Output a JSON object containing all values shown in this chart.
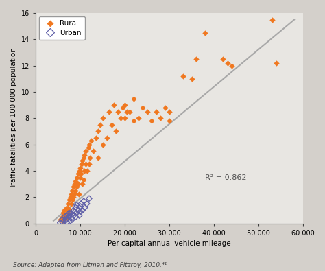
{
  "xlabel": "Per capital annual vehicle mileage",
  "ylabel": "Traffic fatalities per 100 000 population",
  "r2_text": "R² = 0.862",
  "r2_x": 38000,
  "r2_y": 3.5,
  "xlim": [
    0,
    60000
  ],
  "ylim": [
    0,
    16
  ],
  "xticks": [
    0,
    10000,
    20000,
    30000,
    40000,
    50000,
    60000
  ],
  "xtick_labels": [
    "0",
    "10 000",
    "20 000",
    "30 000",
    "40 000",
    "50 000",
    "60 000"
  ],
  "yticks": [
    0,
    2,
    4,
    6,
    8,
    10,
    12,
    14,
    16
  ],
  "fig_bg_color": "#d4d0cb",
  "plot_bg_color": "#e8e6e2",
  "rural_color": "#f07820",
  "urban_color": "#6060a8",
  "trendline_color": "#a8a8a8",
  "rural_points": [
    [
      5500,
      0.3
    ],
    [
      6000,
      0.5
    ],
    [
      6000,
      0.2
    ],
    [
      6200,
      0.8
    ],
    [
      6500,
      1.0
    ],
    [
      6800,
      0.6
    ],
    [
      7000,
      1.2
    ],
    [
      7000,
      0.4
    ],
    [
      7200,
      0.9
    ],
    [
      7300,
      1.5
    ],
    [
      7500,
      1.8
    ],
    [
      7600,
      1.1
    ],
    [
      7800,
      2.0
    ],
    [
      8000,
      1.5
    ],
    [
      8000,
      2.2
    ],
    [
      8200,
      2.5
    ],
    [
      8300,
      1.8
    ],
    [
      8500,
      2.0
    ],
    [
      8500,
      2.8
    ],
    [
      8700,
      2.3
    ],
    [
      8800,
      3.0
    ],
    [
      9000,
      2.5
    ],
    [
      9000,
      3.2
    ],
    [
      9200,
      2.8
    ],
    [
      9300,
      3.5
    ],
    [
      9500,
      3.0
    ],
    [
      9500,
      3.8
    ],
    [
      9700,
      2.2
    ],
    [
      9800,
      4.0
    ],
    [
      10000,
      3.5
    ],
    [
      10000,
      4.2
    ],
    [
      10200,
      3.8
    ],
    [
      10300,
      4.5
    ],
    [
      10500,
      3.0
    ],
    [
      10500,
      4.8
    ],
    [
      10700,
      3.3
    ],
    [
      10800,
      5.0
    ],
    [
      11000,
      4.0
    ],
    [
      11000,
      5.2
    ],
    [
      11200,
      4.5
    ],
    [
      11300,
      5.5
    ],
    [
      11500,
      4.0
    ],
    [
      11800,
      5.8
    ],
    [
      12000,
      4.5
    ],
    [
      12000,
      6.0
    ],
    [
      12200,
      5.0
    ],
    [
      12500,
      6.3
    ],
    [
      13000,
      5.5
    ],
    [
      13500,
      6.5
    ],
    [
      14000,
      5.0
    ],
    [
      14000,
      7.0
    ],
    [
      14500,
      7.5
    ],
    [
      15000,
      6.0
    ],
    [
      15000,
      8.0
    ],
    [
      16000,
      6.5
    ],
    [
      16500,
      8.5
    ],
    [
      17000,
      7.5
    ],
    [
      17500,
      9.0
    ],
    [
      18000,
      7.0
    ],
    [
      18500,
      8.5
    ],
    [
      19000,
      8.0
    ],
    [
      19500,
      8.8
    ],
    [
      20000,
      8.0
    ],
    [
      20000,
      9.0
    ],
    [
      20500,
      8.5
    ],
    [
      21000,
      8.5
    ],
    [
      22000,
      7.8
    ],
    [
      22000,
      9.5
    ],
    [
      23000,
      8.0
    ],
    [
      24000,
      8.8
    ],
    [
      25000,
      8.5
    ],
    [
      26000,
      7.8
    ],
    [
      27000,
      8.5
    ],
    [
      28000,
      8.0
    ],
    [
      29000,
      8.8
    ],
    [
      30000,
      7.8
    ],
    [
      30000,
      8.5
    ],
    [
      33000,
      11.2
    ],
    [
      35000,
      11.0
    ],
    [
      36000,
      12.5
    ],
    [
      38000,
      14.5
    ],
    [
      42000,
      12.5
    ],
    [
      43000,
      12.2
    ],
    [
      44000,
      12.0
    ],
    [
      53000,
      15.5
    ],
    [
      54000,
      12.2
    ]
  ],
  "urban_points": [
    [
      5500,
      0.05
    ],
    [
      6000,
      0.1
    ],
    [
      6000,
      0.3
    ],
    [
      6500,
      0.2
    ],
    [
      6500,
      0.5
    ],
    [
      7000,
      0.3
    ],
    [
      7000,
      0.6
    ],
    [
      7000,
      0.1
    ],
    [
      7200,
      0.4
    ],
    [
      7200,
      0.7
    ],
    [
      7500,
      0.5
    ],
    [
      7500,
      0.8
    ],
    [
      7800,
      0.2
    ],
    [
      7800,
      0.6
    ],
    [
      8000,
      0.4
    ],
    [
      8000,
      0.8
    ],
    [
      8200,
      0.3
    ],
    [
      8200,
      0.7
    ],
    [
      8500,
      0.6
    ],
    [
      8500,
      1.0
    ],
    [
      8800,
      0.9
    ],
    [
      9000,
      0.5
    ],
    [
      9000,
      1.2
    ],
    [
      9200,
      0.8
    ],
    [
      9200,
      1.4
    ],
    [
      9500,
      1.0
    ],
    [
      9800,
      0.6
    ],
    [
      10000,
      1.3
    ],
    [
      10000,
      0.9
    ],
    [
      10200,
      1.5
    ],
    [
      10500,
      1.0
    ],
    [
      10800,
      1.7
    ],
    [
      11000,
      1.2
    ],
    [
      11500,
      1.5
    ],
    [
      12000,
      1.9
    ]
  ],
  "trendline_x": [
    4000,
    58000
  ],
  "trendline_y": [
    0.2,
    15.5
  ]
}
